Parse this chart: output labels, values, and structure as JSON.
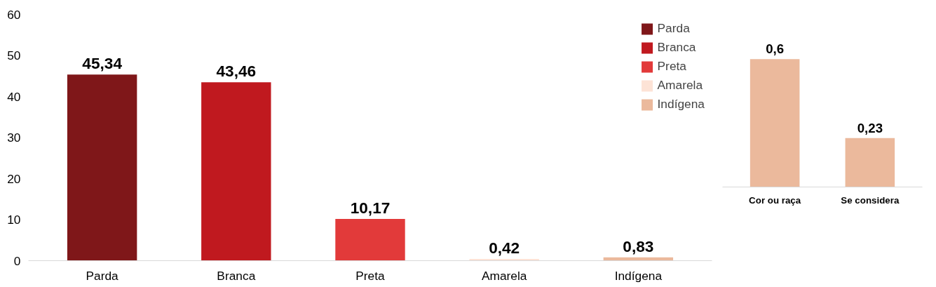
{
  "chart_data": [
    {
      "type": "bar",
      "categories": [
        "Parda",
        "Branca",
        "Preta",
        "Amarela",
        "Indígena"
      ],
      "series": [
        {
          "name": "Parda",
          "color": "#7f1719",
          "values": [
            45.34,
            null,
            null,
            null,
            null
          ],
          "value_labels": [
            "45,34",
            null,
            null,
            null,
            null
          ]
        },
        {
          "name": "Branca",
          "color": "#c0191f",
          "values": [
            null,
            43.46,
            null,
            null,
            null
          ],
          "value_labels": [
            null,
            "43,46",
            null,
            null,
            null
          ]
        },
        {
          "name": "Preta",
          "color": "#e23a3a",
          "values": [
            null,
            null,
            10.17,
            null,
            null
          ],
          "value_labels": [
            null,
            null,
            "10,17",
            null,
            null
          ]
        },
        {
          "name": "Amarela",
          "color": "#fde3d6",
          "values": [
            null,
            null,
            null,
            0.42,
            null
          ],
          "value_labels": [
            null,
            null,
            null,
            "0,42",
            null
          ]
        },
        {
          "name": "Indígena",
          "color": "#ebb99c",
          "values": [
            null,
            null,
            null,
            null,
            0.83
          ],
          "value_labels": [
            null,
            null,
            null,
            null,
            "0,83"
          ]
        }
      ],
      "ylim": [
        0,
        60
      ],
      "yticks": [
        0,
        10,
        20,
        30,
        40,
        50,
        60
      ],
      "grid": false,
      "legend": "top right"
    },
    {
      "type": "bar",
      "categories": [
        "Cor ou raça",
        "Se considera"
      ],
      "series": [
        {
          "color": "#ebb99c",
          "values": [
            0.6,
            0.23
          ],
          "value_labels": [
            "0,6",
            "0,23"
          ]
        }
      ],
      "tick_labels": "x"
    }
  ]
}
